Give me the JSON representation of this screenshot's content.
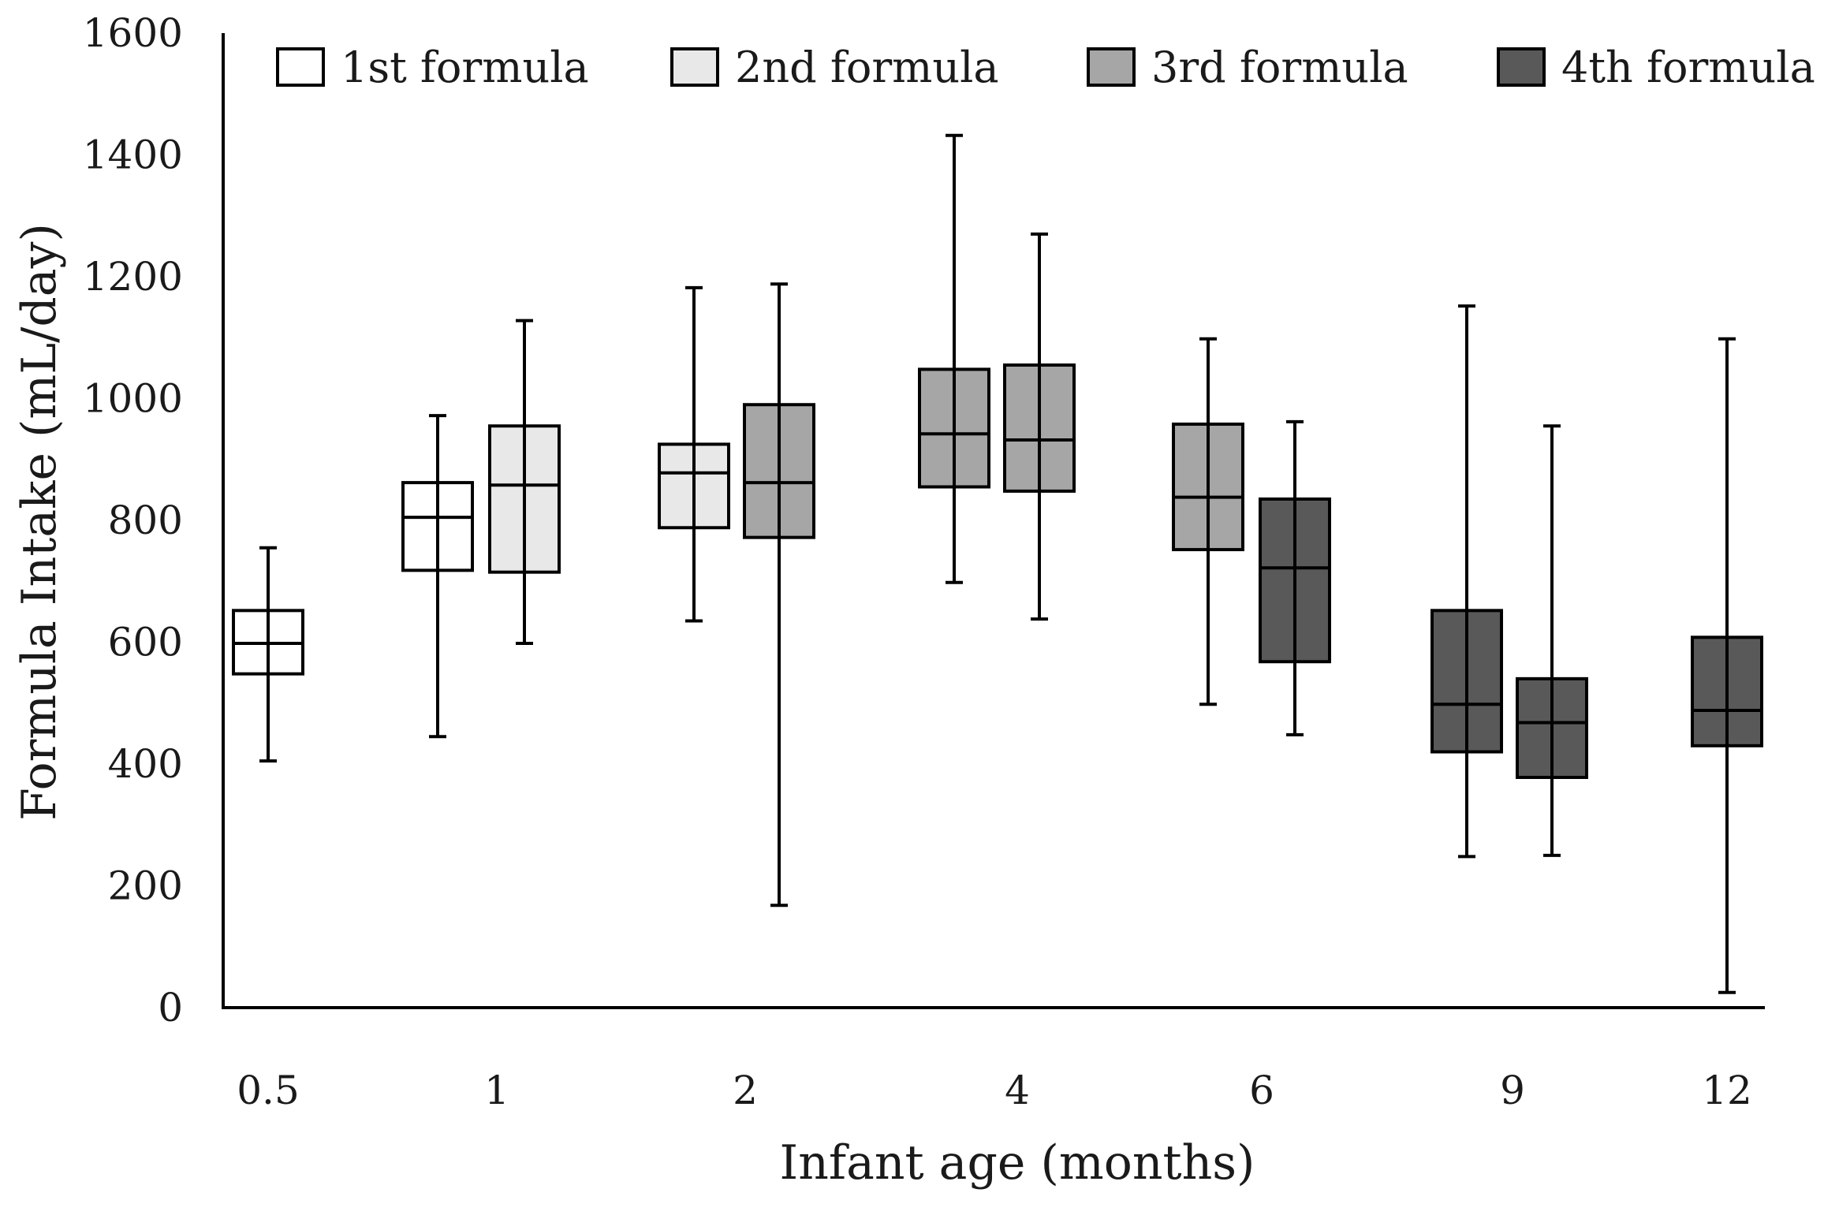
{
  "chart_data": {
    "type": "box",
    "title": "",
    "xlabel": "Infant age (months)",
    "ylabel": "Formula Intake (mL/day)",
    "ylim": [
      0,
      1600
    ],
    "yticks": [
      "0",
      "200",
      "400",
      "600",
      "800",
      "1000",
      "1200",
      "1400",
      "1600"
    ],
    "categories": [
      "0.5",
      "1",
      "2",
      "4",
      "6",
      "9",
      "12"
    ],
    "legend": [
      {
        "label": "1st formula",
        "color": "#ffffff"
      },
      {
        "label": "2nd formula",
        "color": "#e8e8e8"
      },
      {
        "label": "3rd formula",
        "color": "#a6a6a6"
      },
      {
        "label": "4th formula",
        "color": "#595959"
      }
    ],
    "boxes": [
      {
        "age": "0.5",
        "formula": "1st formula",
        "min": 405,
        "q1": 548,
        "median": 598,
        "q3": 652,
        "max": 755
      },
      {
        "age": "1",
        "formula": "1st formula",
        "min": 445,
        "q1": 718,
        "median": 805,
        "q3": 862,
        "max": 972
      },
      {
        "age": "1",
        "formula": "2nd formula",
        "min": 598,
        "q1": 715,
        "median": 858,
        "q3": 955,
        "max": 1128
      },
      {
        "age": "2",
        "formula": "2nd formula",
        "min": 635,
        "q1": 788,
        "median": 878,
        "q3": 925,
        "max": 1182
      },
      {
        "age": "2",
        "formula": "3rd formula",
        "min": 168,
        "q1": 772,
        "median": 862,
        "q3": 990,
        "max": 1188
      },
      {
        "age": "4",
        "formula": "3rd formula",
        "min": 698,
        "q1": 855,
        "median": 942,
        "q3": 1048,
        "max": 1432
      },
      {
        "age": "4",
        "formula": "3rd formula",
        "min": 638,
        "q1": 848,
        "median": 932,
        "q3": 1055,
        "max": 1270
      },
      {
        "age": "6",
        "formula": "3rd formula",
        "min": 498,
        "q1": 752,
        "median": 838,
        "q3": 958,
        "max": 1098
      },
      {
        "age": "6",
        "formula": "4th formula",
        "min": 448,
        "q1": 568,
        "median": 722,
        "q3": 835,
        "max": 962
      },
      {
        "age": "9",
        "formula": "4th formula",
        "min": 248,
        "q1": 420,
        "median": 498,
        "q3": 652,
        "max": 1152
      },
      {
        "age": "9",
        "formula": "4th formula",
        "min": 250,
        "q1": 378,
        "median": 468,
        "q3": 540,
        "max": 955
      },
      {
        "age": "12",
        "formula": "4th formula",
        "min": 25,
        "q1": 430,
        "median": 488,
        "q3": 608,
        "max": 1098
      }
    ]
  }
}
